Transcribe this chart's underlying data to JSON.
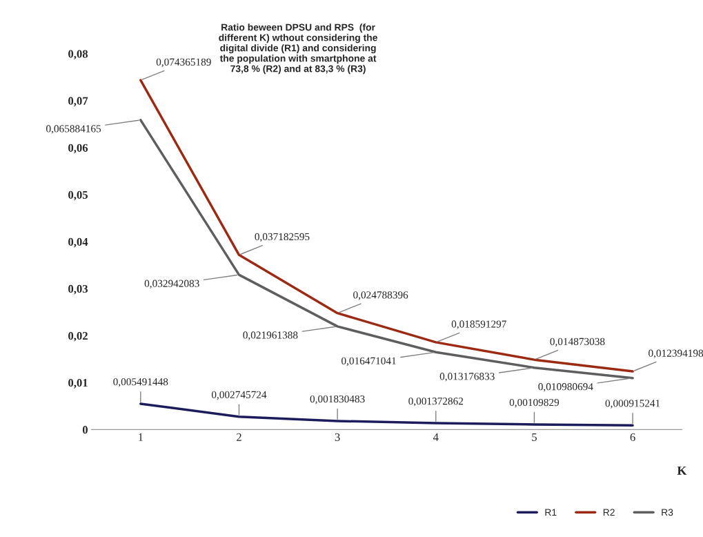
{
  "chart_data": {
    "type": "line",
    "title": "Ratio beween DPSU and RPS  (for\ndifferent K) wthout considering the\ndigital divide (R1) and considering\nthe population with smartphone at\n73,8 % (R2) and at 83,3 % (R3)",
    "xlabel": "K",
    "categories": [
      "1",
      "2",
      "3",
      "4",
      "5",
      "6"
    ],
    "series": [
      {
        "name": "R1",
        "color": "#1c1c5c",
        "values": [
          0.005491448,
          0.002745724,
          0.001830483,
          0.001372862,
          0.00109829,
          0.000915241
        ],
        "value_labels": [
          "0,005491448",
          "0,002745724",
          "0,001830483",
          "0,001372862",
          "0,00109829",
          "0,000915241"
        ]
      },
      {
        "name": "R2",
        "color": "#9c2a12",
        "values": [
          0.074365189,
          0.037182595,
          0.024788396,
          0.018591297,
          0.014873038,
          0.012394198
        ],
        "value_labels": [
          "0,074365189",
          "0,037182595",
          "0,024788396",
          "0,018591297",
          "0,014873038",
          "0,012394198"
        ]
      },
      {
        "name": "R3",
        "color": "#5e5e5e",
        "values": [
          0.065884165,
          0.032942083,
          0.021961388,
          0.016471041,
          0.013176833,
          0.010980694
        ],
        "value_labels": [
          "0,065884165",
          "0,032942083",
          "0,021961388",
          "0,016471041",
          "0,013176833",
          "0,010980694"
        ]
      }
    ],
    "ylim": [
      0,
      0.08
    ],
    "yticks": [
      0,
      {
        "value": 0.01,
        "label": "0,01"
      },
      {
        "value": 0.02,
        "label": "0,02"
      },
      {
        "value": 0.03,
        "label": "0,03"
      },
      {
        "value": 0.04,
        "label": "0,04"
      },
      {
        "value": 0.05,
        "label": "0,05"
      },
      {
        "value": 0.06,
        "label": "0,06"
      },
      {
        "value": 0.07,
        "label": "0,07"
      },
      {
        "value": 0.08,
        "label": "0,08"
      }
    ],
    "grid": false,
    "legend": "bottom right",
    "marker": "none",
    "line_style": "solid"
  }
}
